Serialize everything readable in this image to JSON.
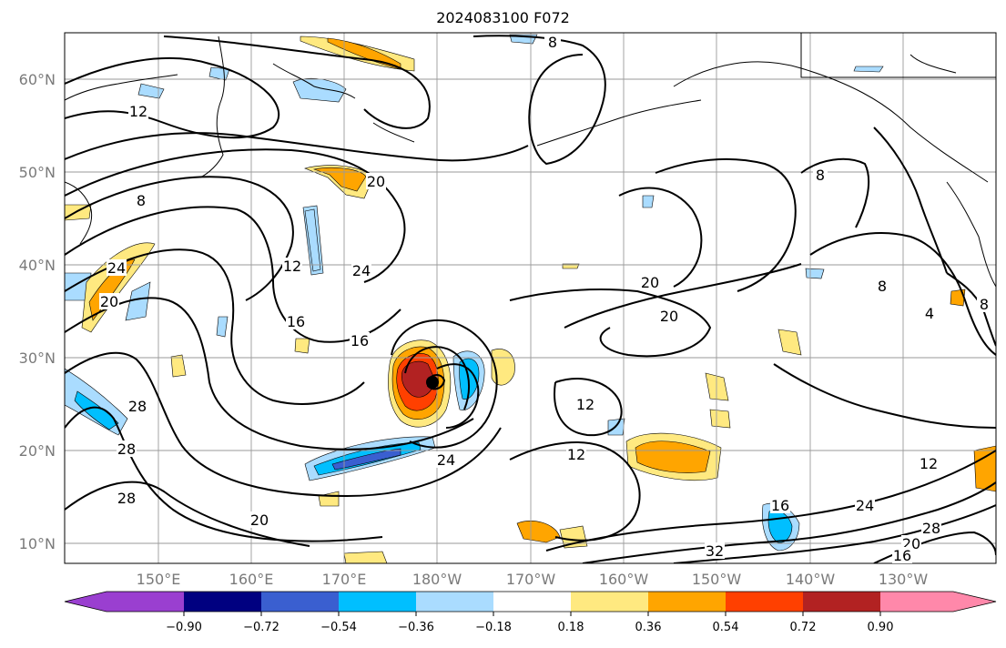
{
  "title": "2024083100 F072",
  "map": {
    "lat_labels": [
      "60°N",
      "50°N",
      "40°N",
      "30°N",
      "20°N",
      "10°N"
    ],
    "lon_labels": [
      "150°E",
      "160°E",
      "170°E",
      "180°W",
      "170°W",
      "160°W",
      "150°W",
      "140°W",
      "130°W"
    ],
    "contour_labels": [
      "8",
      "12",
      "8",
      "20",
      "8",
      "24",
      "20",
      "12",
      "24",
      "16",
      "16",
      "20",
      "20",
      "8",
      "4",
      "8",
      "28",
      "28",
      "28",
      "12",
      "12",
      "24",
      "12",
      "24",
      "20",
      "16",
      "32",
      "28",
      "20",
      "16"
    ]
  },
  "colorbar": {
    "tick_labels": [
      "−0.90",
      "−0.72",
      "−0.54",
      "−0.36",
      "−0.18",
      "0.18",
      "0.36",
      "0.54",
      "0.72",
      "0.90"
    ],
    "colors": [
      "#9a3fd0",
      "#000080",
      "#3a5fd0",
      "#00bfff",
      "#aadcff",
      "#ffffff",
      "#ffe980",
      "#ffa500",
      "#ff4000",
      "#b22222",
      "#ff88aa"
    ]
  }
}
